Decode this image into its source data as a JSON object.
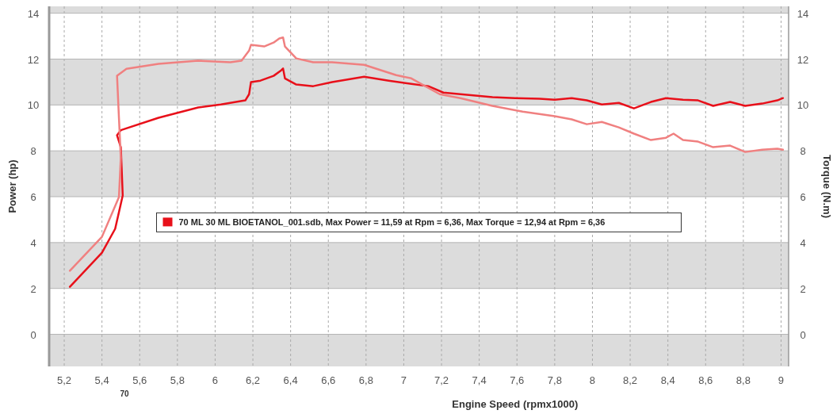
{
  "chart_data": {
    "type": "line",
    "xlabel": "Engine Speed (rpmx1000)",
    "ylabel": "Power (hp)",
    "y2label": "Torque (N.m)",
    "xlim": [
      5.12,
      9.04
    ],
    "ylim": [
      -1.4,
      14.3
    ],
    "y2lim": [
      -1.4,
      14.3
    ],
    "xticks": [
      {
        "value": 5.2,
        "label": "5,2"
      },
      {
        "value": 5.4,
        "label": "5,4"
      },
      {
        "value": 5.6,
        "label": "5,6"
      },
      {
        "value": 5.8,
        "label": "5,8"
      },
      6,
      {
        "value": 6.2,
        "label": "6,2"
      },
      {
        "value": 6.4,
        "label": "6,4"
      },
      {
        "value": 6.6,
        "label": "6,6"
      },
      {
        "value": 6.8,
        "label": "6,8"
      },
      7,
      {
        "value": 7.2,
        "label": "7,2"
      },
      {
        "value": 7.4,
        "label": "7,4"
      },
      {
        "value": 7.6,
        "label": "7,6"
      },
      {
        "value": 7.8,
        "label": "7,8"
      },
      8,
      {
        "value": 8.2,
        "label": "8,2"
      },
      {
        "value": 8.4,
        "label": "8,4"
      },
      {
        "value": 8.6,
        "label": "8,6"
      },
      {
        "value": 8.8,
        "label": "8,8"
      },
      9
    ],
    "yticks": [
      0,
      2,
      4,
      6,
      8,
      10,
      12,
      14
    ],
    "y2ticks": [
      0,
      2,
      4,
      6,
      8,
      10,
      12,
      14
    ],
    "grid": true,
    "legend": "center",
    "line_style": "solid",
    "marker": "none",
    "bands": [
      {
        "axis": "y",
        "from": -1.4,
        "to": 0,
        "color": "#dcdcdc"
      },
      {
        "axis": "y",
        "from": 2,
        "to": 4,
        "color": "#dcdcdc"
      },
      {
        "axis": "y",
        "from": 6,
        "to": 8,
        "color": "#dcdcdc"
      },
      {
        "axis": "y",
        "from": 10,
        "to": 12,
        "color": "#dcdcdc"
      },
      {
        "axis": "y",
        "from": 14,
        "to": 14.3,
        "color": "#dcdcdc"
      }
    ],
    "annotations": [
      "70"
    ],
    "series": [
      {
        "name": "70 ML 30 ML BIOETANOL_001.sdb, Max Power = 11,59 at Rpm = 6,36, Max Torque = 12,94 at Rpm = 6,36",
        "color": "#e8101a",
        "x": [
          5.23,
          5.4,
          5.47,
          5.51,
          5.5,
          5.48,
          5.5,
          5.7,
          5.91,
          6.03,
          6.16,
          6.18,
          6.19,
          6.24,
          6.31,
          6.35,
          6.36,
          6.37,
          6.43,
          6.52,
          6.62,
          6.79,
          6.92,
          7.04,
          7.13,
          7.21,
          7.3,
          7.47,
          7.59,
          7.72,
          7.8,
          7.89,
          7.97,
          8.05,
          8.14,
          8.22,
          8.31,
          8.39,
          8.48,
          8.56,
          8.64,
          8.73,
          8.81,
          8.9,
          8.98,
          9.01
        ],
        "values": [
          2.07,
          3.56,
          4.6,
          6.05,
          8.16,
          8.68,
          8.9,
          9.44,
          9.89,
          10.02,
          10.2,
          10.47,
          11.0,
          11.06,
          11.27,
          11.51,
          11.59,
          11.16,
          10.89,
          10.82,
          11.0,
          11.23,
          11.06,
          10.92,
          10.82,
          10.54,
          10.47,
          10.34,
          10.3,
          10.27,
          10.23,
          10.3,
          10.2,
          10.02,
          10.09,
          9.85,
          10.13,
          10.3,
          10.23,
          10.2,
          9.96,
          10.13,
          9.96,
          10.06,
          10.2,
          10.3
        ]
      },
      {
        "color": "#f08080",
        "x": [
          5.23,
          5.4,
          5.49,
          5.5,
          5.49,
          5.48,
          5.53,
          5.7,
          5.91,
          6.08,
          6.14,
          6.18,
          6.19,
          6.26,
          6.31,
          6.34,
          6.36,
          6.37,
          6.43,
          6.52,
          6.62,
          6.79,
          6.96,
          7.04,
          7.19,
          7.3,
          7.47,
          7.63,
          7.8,
          7.89,
          7.97,
          8.05,
          8.14,
          8.22,
          8.31,
          8.39,
          8.43,
          8.48,
          8.56,
          8.64,
          8.73,
          8.81,
          8.9,
          8.98,
          9.01
        ],
        "values": [
          2.77,
          4.25,
          5.98,
          7.7,
          9.44,
          11.27,
          11.58,
          11.79,
          11.93,
          11.86,
          11.93,
          12.37,
          12.62,
          12.55,
          12.72,
          12.9,
          12.94,
          12.55,
          12.03,
          11.86,
          11.86,
          11.75,
          11.3,
          11.16,
          10.47,
          10.3,
          9.96,
          9.71,
          9.51,
          9.37,
          9.16,
          9.26,
          9.02,
          8.75,
          8.47,
          8.57,
          8.75,
          8.47,
          8.4,
          8.16,
          8.23,
          7.95,
          8.05,
          8.09,
          8.05
        ]
      }
    ]
  }
}
